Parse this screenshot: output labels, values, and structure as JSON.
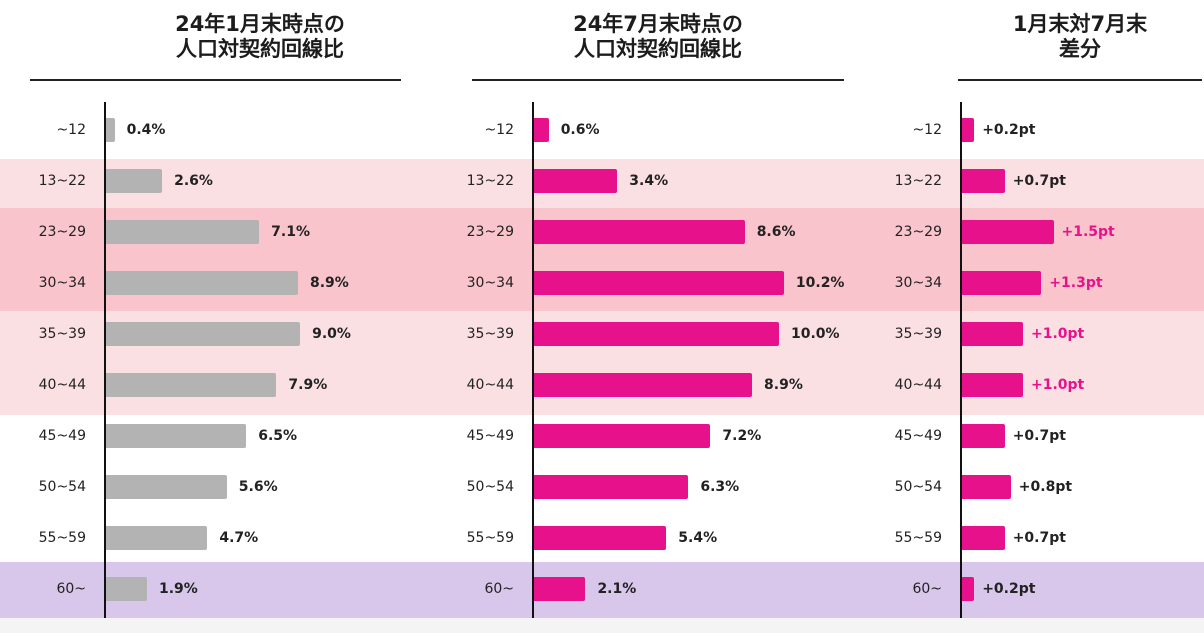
{
  "colors": {
    "bar_jan": "#b3b3b3",
    "bar_jul": "#e8118c",
    "diff_highlight_text": "#e8118c",
    "band_light_pink": "#fbe0e3",
    "band_pink": "#f9c4cb",
    "band_purple": "#d8c7ea",
    "band_gray": "#f4f4f4"
  },
  "headers": {
    "jan": "24年1月末時点の\n人口対契約回線比",
    "jul": "24年7月末時点の\n人口対契約回線比",
    "diff": "1月末対7月末\n差分"
  },
  "chart_data": [
    {
      "type": "bar",
      "orientation": "horizontal",
      "title": "24年1月末時点の\n人口対契約回線比",
      "categories": [
        "~12",
        "13~22",
        "23~29",
        "30~34",
        "35~39",
        "40~44",
        "45~49",
        "50~54",
        "55~59",
        "60~"
      ],
      "values": [
        0.4,
        2.6,
        7.1,
        8.9,
        9.0,
        7.9,
        6.5,
        5.6,
        4.7,
        1.9
      ],
      "labels": [
        "0.4%",
        "2.6%",
        "7.1%",
        "8.9%",
        "9.0%",
        "7.9%",
        "6.5%",
        "5.6%",
        "4.7%",
        "1.9%"
      ],
      "unit": "%",
      "xlim": [
        0,
        10.2
      ],
      "color": "#b3b3b3"
    },
    {
      "type": "bar",
      "orientation": "horizontal",
      "title": "24年7月末時点の\n人口対契約回線比",
      "categories": [
        "~12",
        "13~22",
        "23~29",
        "30~34",
        "35~39",
        "40~44",
        "45~49",
        "50~54",
        "55~59",
        "60~"
      ],
      "values": [
        0.6,
        3.4,
        8.6,
        10.2,
        10.0,
        8.9,
        7.2,
        6.3,
        5.4,
        2.1
      ],
      "labels": [
        "0.6%",
        "3.4%",
        "8.6%",
        "10.2%",
        "10.0%",
        "8.9%",
        "7.2%",
        "6.3%",
        "5.4%",
        "2.1%"
      ],
      "unit": "%",
      "xlim": [
        0,
        10.2
      ],
      "color": "#e8118c"
    },
    {
      "type": "bar",
      "orientation": "horizontal",
      "title": "1月末対7月末\n差分",
      "categories": [
        "~12",
        "13~22",
        "23~29",
        "30~34",
        "35~39",
        "40~44",
        "45~49",
        "50~54",
        "55~59",
        "60~"
      ],
      "values": [
        0.2,
        0.7,
        1.5,
        1.3,
        1.0,
        1.0,
        0.7,
        0.8,
        0.7,
        0.2
      ],
      "labels": [
        "+0.2pt",
        "+0.7pt",
        "+1.5pt",
        "+1.3pt",
        "+1.0pt",
        "+1.0pt",
        "+0.7pt",
        "+0.8pt",
        "+0.7pt",
        "+0.2pt"
      ],
      "highlighted": [
        false,
        false,
        true,
        true,
        true,
        true,
        false,
        false,
        false,
        false
      ],
      "unit": "pt",
      "xlim": [
        0,
        1.5
      ],
      "color": "#e8118c"
    }
  ]
}
